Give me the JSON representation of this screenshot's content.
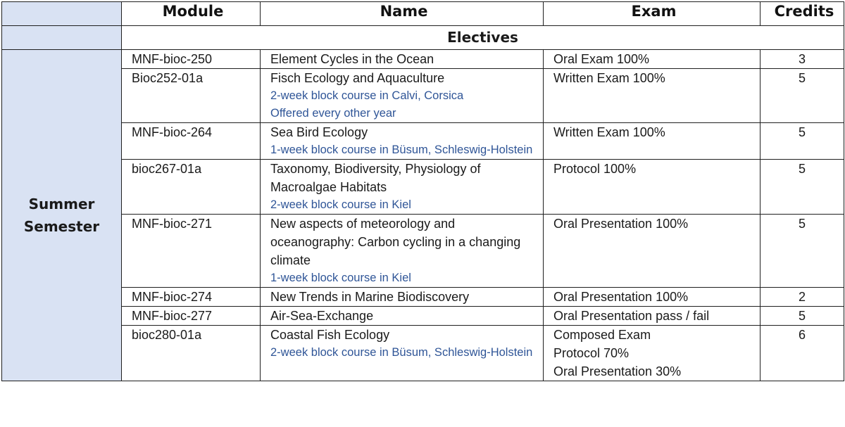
{
  "table": {
    "headers": {
      "module": "Module",
      "name": "Name",
      "exam": "Exam",
      "credits": "Credits"
    },
    "semester_line1": "Summer",
    "semester_line2": "Semester",
    "section_label": "Electives",
    "rows": [
      {
        "module": "MNF-bioc-250",
        "name": "Element Cycles in the Ocean",
        "notes": [],
        "exam": [
          "Oral Exam 100%"
        ],
        "credits": "3"
      },
      {
        "module": "Bioc252-01a",
        "name": "Fisch Ecology and Aquaculture",
        "notes": [
          "2-week block course in Calvi, Corsica",
          "Offered every other year"
        ],
        "exam": [
          "Written Exam 100%"
        ],
        "credits": "5"
      },
      {
        "module": "MNF-bioc-264",
        "name": "Sea Bird Ecology",
        "notes": [
          "1-week block course in Büsum, Schleswig-Holstein"
        ],
        "exam": [
          "Written Exam 100%"
        ],
        "credits": "5"
      },
      {
        "module": "bioc267-01a",
        "name": "Taxonomy, Biodiversity, Physiology of Macroalgae Habitats",
        "notes": [
          "2-week block course in Kiel"
        ],
        "exam": [
          "Protocol 100%"
        ],
        "credits": "5"
      },
      {
        "module": "MNF-bioc-271",
        "name": "New aspects of meteorology and oceanography: Carbon cycling in a changing climate",
        "notes": [
          "1-week block course in Kiel"
        ],
        "exam": [
          "Oral Presentation 100%"
        ],
        "credits": "5"
      },
      {
        "module": "MNF-bioc-274",
        "name": "New Trends in Marine Biodiscovery",
        "notes": [],
        "exam": [
          "Oral Presentation 100%"
        ],
        "credits": "2"
      },
      {
        "module": "MNF-bioc-277",
        "name": "Air-Sea-Exchange",
        "notes": [],
        "exam": [
          "Oral Presentation pass / fail"
        ],
        "credits": "5"
      },
      {
        "module": "bioc280-01a",
        "name": "Coastal Fish Ecology",
        "notes": [
          "2-week block course in Büsum, Schleswig-Holstein"
        ],
        "exam": [
          "Composed Exam",
          "Protocol 70%",
          "Oral Presentation 30%"
        ],
        "credits": "6"
      }
    ]
  }
}
